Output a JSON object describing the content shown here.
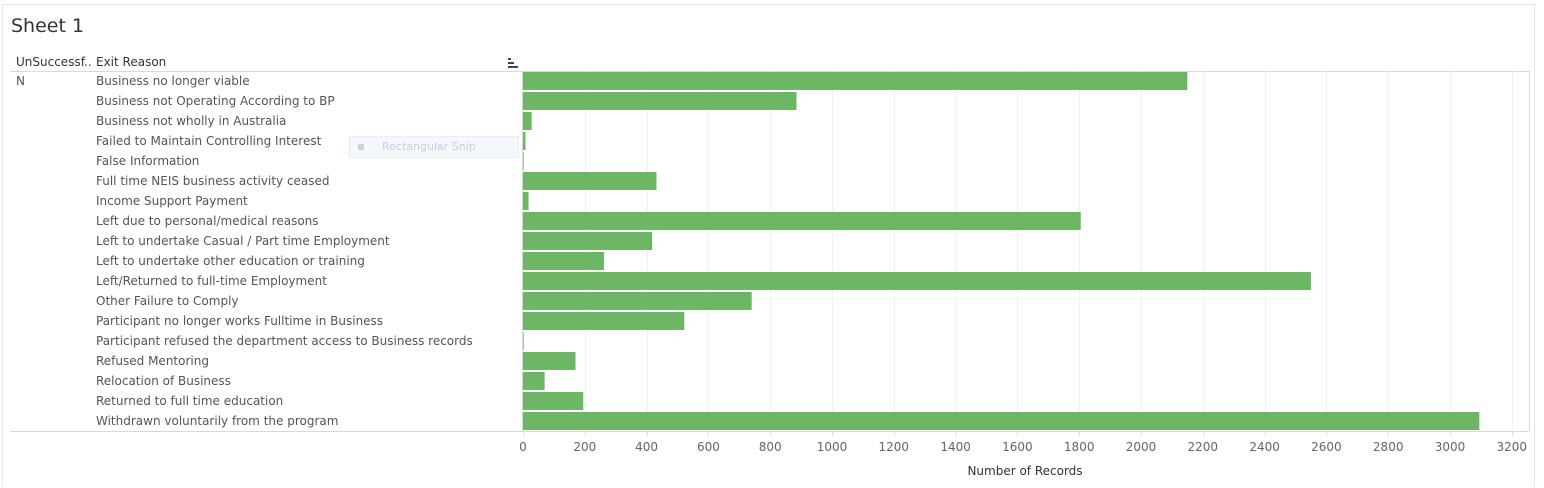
{
  "sheet": {
    "title": "Sheet 1"
  },
  "headers": {
    "unsuccessful": "UnSuccessf..",
    "exit_reason": "Exit Reason"
  },
  "unsuccessful_value": "N",
  "overlay": {
    "label": "Rectangular Snip"
  },
  "colors": {
    "bar": "#6db664",
    "grid": "#f0f0f0",
    "axis_text": "#666666"
  },
  "chart_data": {
    "type": "bar",
    "orientation": "horizontal",
    "categories": [
      "Business no longer viable",
      "Business not Operating According to BP",
      "Business not wholly in Australia",
      "Failed to Maintain Controlling Interest",
      "False Information",
      "Full time NEIS business activity ceased",
      "Income Support Payment",
      "Left due to personal/medical reasons",
      "Left to undertake Casual / Part time Employment",
      "Left to undertake other education or training",
      "Left/Returned to full-time Employment",
      "Other Failure to Comply",
      "Participant no longer works Fulltime in Business",
      "Participant refused the department access to Business records",
      "Refused Mentoring",
      "Relocation of Business",
      "Returned to full time education",
      "Withdrawn voluntarily from the program"
    ],
    "values": [
      2150,
      885,
      28,
      8,
      2,
      432,
      18,
      1805,
      418,
      262,
      2550,
      740,
      522,
      2,
      170,
      70,
      195,
      3095
    ],
    "xlabel": "Number of Records",
    "xticks": [
      0,
      200,
      400,
      600,
      800,
      1000,
      1200,
      1400,
      1600,
      1800,
      2000,
      2200,
      2400,
      2600,
      2800,
      3000,
      3200
    ],
    "xlim": [
      0,
      3200
    ],
    "grid": true
  }
}
